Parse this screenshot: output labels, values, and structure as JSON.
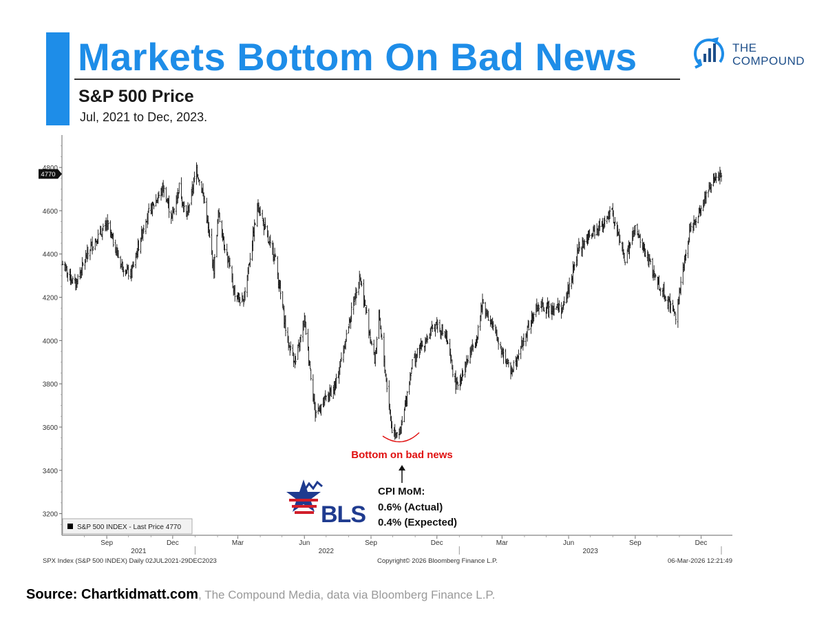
{
  "header": {
    "title": "Markets Bottom On Bad News",
    "subtitle": "S&P 500 Price",
    "date_range": "Jul, 2021 to Dec, 2023."
  },
  "logo": {
    "line1": "THE",
    "line2": "COMPOUND",
    "icon": "bar-chart-circle-arrow-icon",
    "color": "#1e8de8"
  },
  "colors": {
    "accent": "#1e8de8",
    "annotation": "#e01010"
  },
  "chart_data": {
    "type": "bar",
    "style": "ohlc",
    "series_name": "S&P 500 INDEX - Last Price 4770",
    "last_price_tag": "4770",
    "ylim": [
      3100,
      4950
    ],
    "y_ticks": [
      3200,
      3400,
      3600,
      3800,
      4000,
      4200,
      4400,
      4600,
      4800
    ],
    "x_range": [
      "2021-07-02",
      "2023-12-29"
    ],
    "x_month_ticks": [
      {
        "label": "Sep",
        "date": "2021-09-01"
      },
      {
        "label": "Dec",
        "date": "2021-12-01"
      },
      {
        "label": "Mar",
        "date": "2022-03-01"
      },
      {
        "label": "Jun",
        "date": "2022-06-01"
      },
      {
        "label": "Sep",
        "date": "2022-09-01"
      },
      {
        "label": "Dec",
        "date": "2022-12-01"
      },
      {
        "label": "Mar",
        "date": "2023-03-01"
      },
      {
        "label": "Jun",
        "date": "2023-06-01"
      },
      {
        "label": "Sep",
        "date": "2023-09-01"
      },
      {
        "label": "Dec",
        "date": "2023-12-01"
      }
    ],
    "x_year_ticks": [
      {
        "label": "2021",
        "date": "2021-10-15"
      },
      {
        "label": "2022",
        "date": "2022-07-01"
      },
      {
        "label": "2023",
        "date": "2023-07-01"
      }
    ],
    "x_year_separators": [
      "2022-01-01",
      "2023-01-01"
    ],
    "path": [
      [
        "2021-07-02",
        4352
      ],
      [
        "2021-07-19",
        4258
      ],
      [
        "2021-08-10",
        4436
      ],
      [
        "2021-09-02",
        4536
      ],
      [
        "2021-09-20",
        4358
      ],
      [
        "2021-10-04",
        4300
      ],
      [
        "2021-10-25",
        4566
      ],
      [
        "2021-11-18",
        4705
      ],
      [
        "2021-11-30",
        4567
      ],
      [
        "2021-12-10",
        4712
      ],
      [
        "2021-12-20",
        4568
      ],
      [
        "2022-01-03",
        4796
      ],
      [
        "2022-01-13",
        4660
      ],
      [
        "2022-01-27",
        4326
      ],
      [
        "2022-02-02",
        4590
      ],
      [
        "2022-02-24",
        4225
      ],
      [
        "2022-03-08",
        4170
      ],
      [
        "2022-03-29",
        4631
      ],
      [
        "2022-04-13",
        4446
      ],
      [
        "2022-04-21",
        4394
      ],
      [
        "2022-05-09",
        3991
      ],
      [
        "2022-05-20",
        3900
      ],
      [
        "2022-06-01",
        4101
      ],
      [
        "2022-06-16",
        3666
      ],
      [
        "2022-07-14",
        3790
      ],
      [
        "2022-08-16",
        4305
      ],
      [
        "2022-09-06",
        3908
      ],
      [
        "2022-09-12",
        4110
      ],
      [
        "2022-09-30",
        3585
      ],
      [
        "2022-10-12",
        3577
      ],
      [
        "2022-10-28",
        3901
      ],
      [
        "2022-11-30",
        4080
      ],
      [
        "2022-12-13",
        4019
      ],
      [
        "2022-12-28",
        3783
      ],
      [
        "2023-01-25",
        4016
      ],
      [
        "2023-02-02",
        4179
      ],
      [
        "2023-03-13",
        3855
      ],
      [
        "2023-04-18",
        4155
      ],
      [
        "2023-05-25",
        4151
      ],
      [
        "2023-06-15",
        4425
      ],
      [
        "2023-07-31",
        4589
      ],
      [
        "2023-08-18",
        4370
      ],
      [
        "2023-09-01",
        4515
      ],
      [
        "2023-09-29",
        4288
      ],
      [
        "2023-10-27",
        4117
      ],
      [
        "2023-11-15",
        4502
      ],
      [
        "2023-12-14",
        4719
      ],
      [
        "2023-12-29",
        4770
      ]
    ],
    "annotations": [
      {
        "text": "Bottom on bad news",
        "date": "2022-10-12",
        "value": 3491,
        "color": "#e01010"
      },
      {
        "text": "CPI MoM:",
        "date": "2022-10-12"
      },
      {
        "text": "0.6% (Actual)",
        "date": "2022-10-12"
      },
      {
        "text": "0.4% (Expected)",
        "date": "2022-10-12"
      }
    ],
    "bls_logo_text": "BLS",
    "legend_text": "S&P 500 INDEX - Last Price 4770",
    "footer_left": "SPX Index (S&P 500 INDEX) Daily 02JUL2021-29DEC2023",
    "footer_center": "Copyright© 2026 Bloomberg Finance L.P.",
    "footer_right": "06-Mar-2026 12:21:49"
  },
  "source": {
    "bold": "Source: Chartkidmatt.com",
    "rest": ", The Compound Media, data via Bloomberg Finance L.P."
  }
}
